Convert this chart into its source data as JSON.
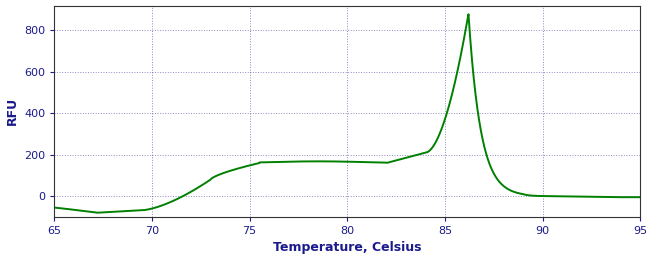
{
  "title": "",
  "xlabel": "Temperature, Celsius",
  "ylabel": "RFU",
  "xlim": [
    65,
    95
  ],
  "ylim": [
    -100,
    920
  ],
  "yticks": [
    0,
    200,
    400,
    600,
    800
  ],
  "xticks": [
    65,
    70,
    75,
    80,
    85,
    90,
    95
  ],
  "line_color": "#008000",
  "line_width": 1.4,
  "bg_color": "#ffffff",
  "grid_color": "#1a1a8c",
  "grid_alpha": 0.5
}
